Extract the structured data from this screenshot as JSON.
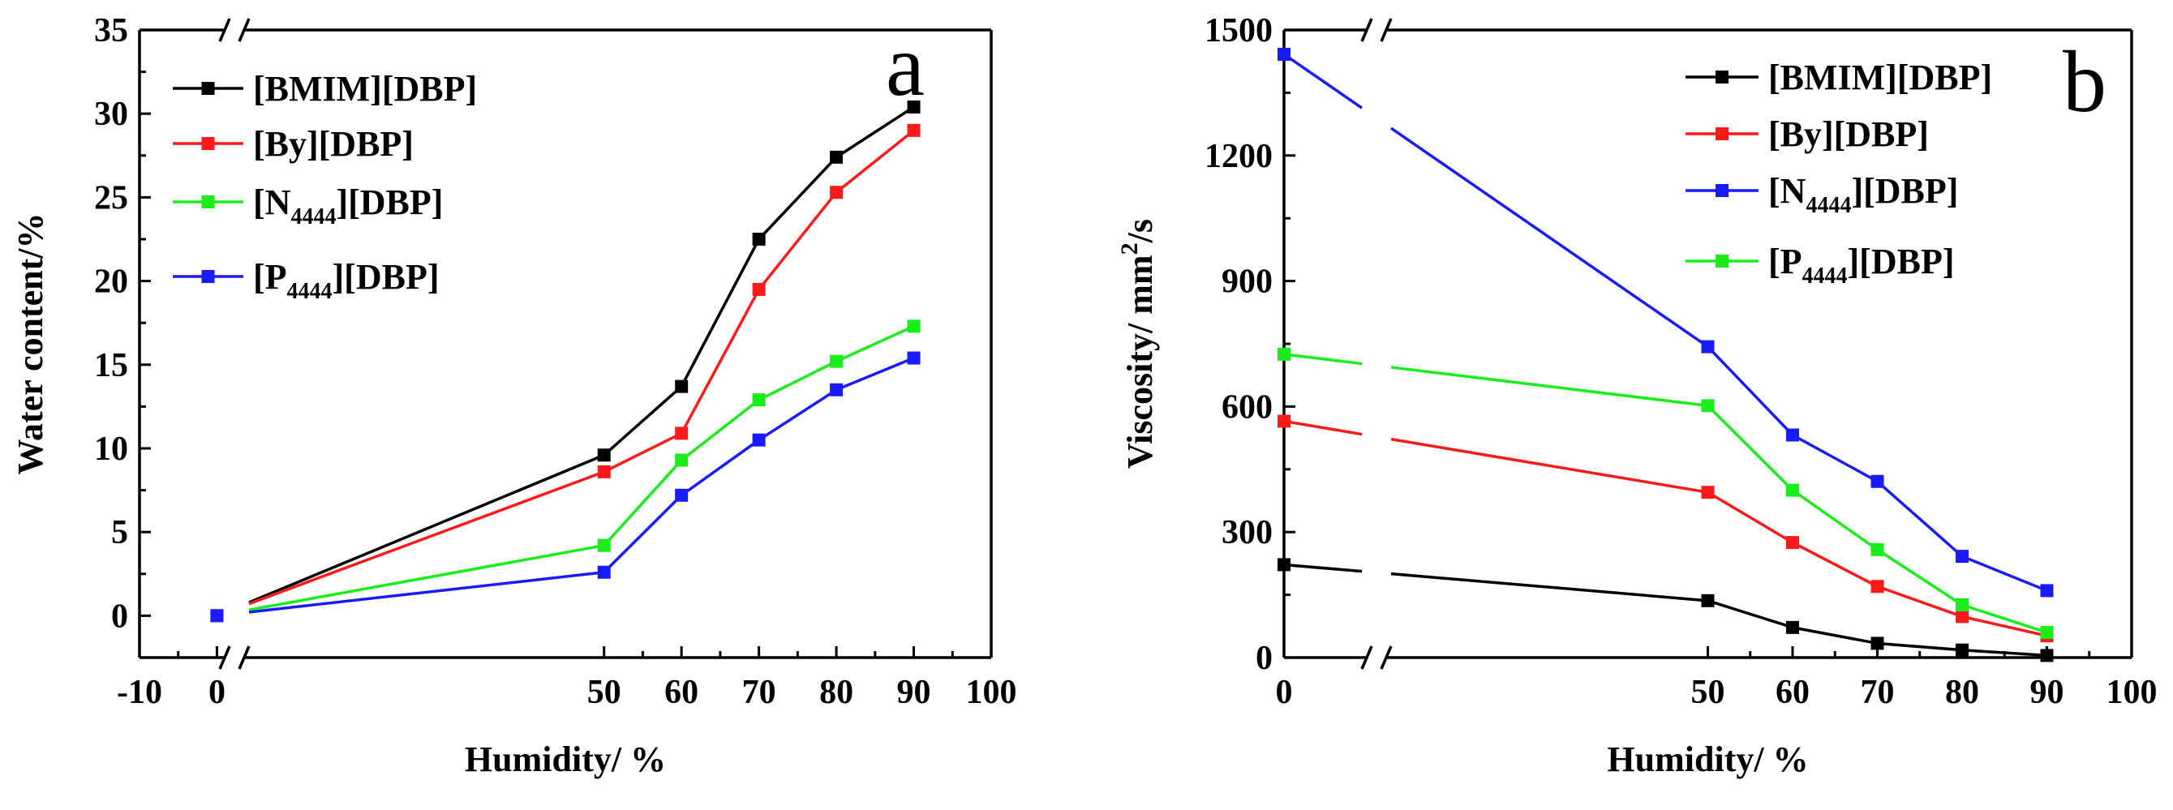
{
  "chart_data": [
    {
      "type": "line",
      "panel_label": "a",
      "xlabel": "Humidity/ %",
      "ylabel": "Water content/%",
      "xlim": [
        -10,
        100
      ],
      "ylim": [
        -2.5,
        35
      ],
      "x_ticks": [
        "-10",
        "0",
        "50",
        "60",
        "70",
        "80",
        "90",
        "100"
      ],
      "y_ticks": [
        "0",
        "5",
        "10",
        "15",
        "20",
        "25",
        "30",
        "35"
      ],
      "axis_break": "between 0 and 50 on x-axis",
      "legend_position": "top-left",
      "x": [
        0,
        50,
        60,
        70,
        80,
        90
      ],
      "series": [
        {
          "name_main": "[BMIM][DBP]",
          "name_sub": "",
          "name_tail": "",
          "color": "#000000",
          "values": [
            0,
            9.6,
            13.7,
            22.5,
            27.4,
            30.4
          ]
        },
        {
          "name_main": "[By][DBP]",
          "name_sub": "",
          "name_tail": "",
          "color": "#ff1a1a",
          "values": [
            0,
            8.6,
            10.9,
            19.5,
            25.3,
            29.0
          ]
        },
        {
          "name_main": "[N",
          "name_sub": "4444",
          "name_tail": "][DBP]",
          "color": "#1aee1a",
          "values": [
            0,
            4.2,
            9.3,
            12.9,
            15.2,
            17.3
          ]
        },
        {
          "name_main": "[P",
          "name_sub": "4444",
          "name_tail": "][DBP]",
          "color": "#1a1aff",
          "values": [
            0,
            2.6,
            7.2,
            10.5,
            13.5,
            15.4
          ]
        }
      ]
    },
    {
      "type": "line",
      "panel_label": "b",
      "xlabel": "Humidity/ %",
      "ylabel_main": "Viscosity/ mm",
      "ylabel_sup": "2",
      "ylabel_tail": "/s",
      "xlim": [
        0,
        100
      ],
      "ylim": [
        0,
        1500
      ],
      "x_ticks": [
        "0",
        "50",
        "60",
        "70",
        "80",
        "90",
        "100"
      ],
      "y_ticks": [
        "0",
        "300",
        "600",
        "900",
        "1200",
        "1500"
      ],
      "axis_break": "between 0 and 50 on x-axis",
      "legend_position": "top-right",
      "x": [
        0,
        50,
        60,
        70,
        80,
        90
      ],
      "series": [
        {
          "name_main": "[BMIM][DBP]",
          "name_sub": "",
          "name_tail": "",
          "color": "#000000",
          "values": [
            222,
            136,
            72,
            34,
            18,
            5
          ]
        },
        {
          "name_main": "[By][DBP]",
          "name_sub": "",
          "name_tail": "",
          "color": "#ff1a1a",
          "values": [
            565,
            395,
            275,
            170,
            98,
            52
          ]
        },
        {
          "name_main": "[N",
          "name_sub": "4444",
          "name_tail": "][DBP]",
          "color": "#1a1aff",
          "values": [
            1442,
            743,
            532,
            421,
            242,
            160
          ]
        },
        {
          "name_main": "[P",
          "name_sub": "4444",
          "name_tail": "][DBP]",
          "color": "#1aee1a",
          "values": [
            725,
            602,
            400,
            258,
            126,
            60
          ]
        }
      ]
    }
  ]
}
